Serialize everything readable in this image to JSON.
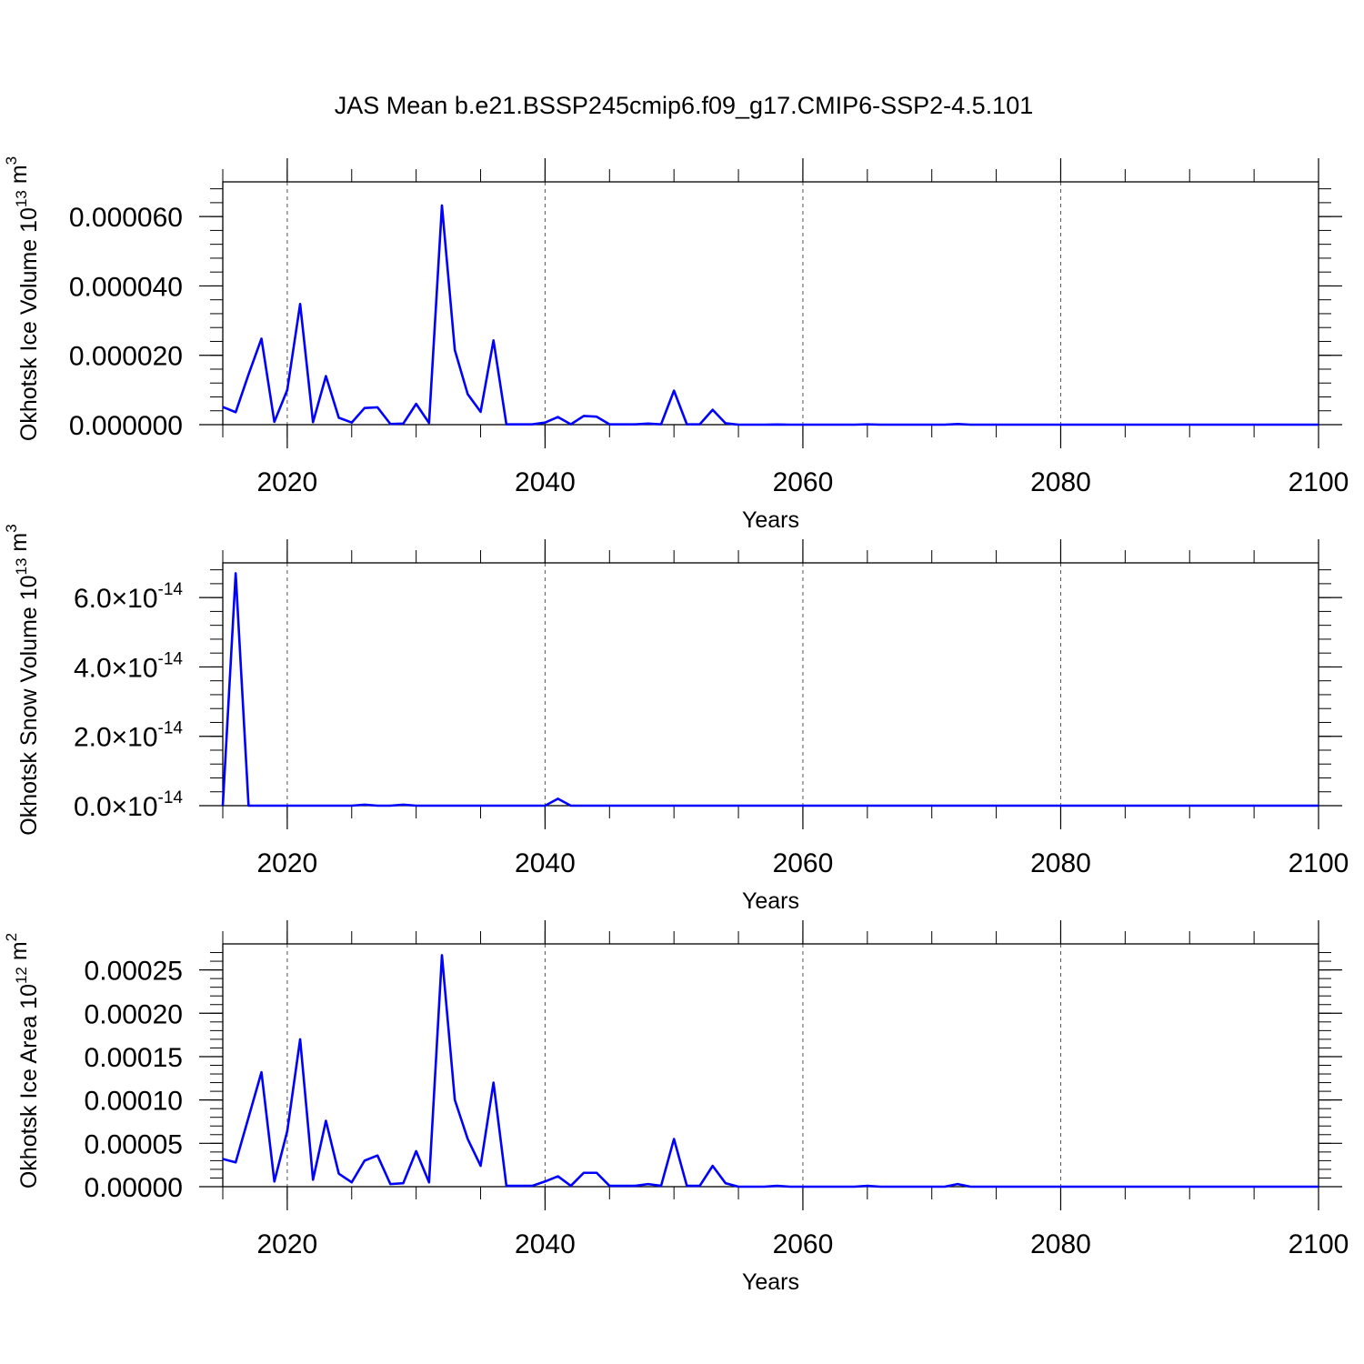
{
  "title": "JAS Mean b.e21.BSSP245cmip6.f09_g17.CMIP6-SSP2-4.5.101",
  "chart_data": [
    {
      "type": "line",
      "ylabel": "Okhotsk Ice Volume 10",
      "ylabel_sup": "13",
      "ylabel_unit": " m",
      "ylabel_unit_sup": "3",
      "xlabel": "Years",
      "xlim": [
        2015,
        2100
      ],
      "ylim": [
        0,
        7e-05
      ],
      "x_ticks": [
        2020,
        2040,
        2060,
        2080,
        2100
      ],
      "x_tick_labels": [
        "2020",
        "2040",
        "2060",
        "2080",
        "2100"
      ],
      "y_ticks": [
        0,
        2e-05,
        4e-05,
        6e-05
      ],
      "y_tick_labels": [
        {
          "base": "0.000000",
          "sup": ""
        },
        {
          "base": "0.000020",
          "sup": ""
        },
        {
          "base": "0.000040",
          "sup": ""
        },
        {
          "base": "0.000060",
          "sup": ""
        }
      ],
      "grid": "vertical dashed",
      "series": [
        {
          "color": "#0000ff",
          "x": [
            2015,
            2016,
            2017,
            2018,
            2019,
            2020,
            2021,
            2022,
            2023,
            2024,
            2025,
            2026,
            2027,
            2028,
            2029,
            2030,
            2031,
            2032,
            2033,
            2034,
            2035,
            2036,
            2037,
            2038,
            2039,
            2040,
            2041,
            2042,
            2043,
            2044,
            2045,
            2046,
            2047,
            2048,
            2049,
            2050,
            2051,
            2052,
            2053,
            2054,
            2055,
            2056,
            2057,
            2058,
            2059,
            2060,
            2061,
            2062,
            2063,
            2064,
            2065,
            2066,
            2067,
            2068,
            2069,
            2070,
            2071,
            2072,
            2073,
            2074,
            2075,
            2076,
            2077,
            2078,
            2079,
            2080,
            2081,
            2082,
            2083,
            2084,
            2085,
            2086,
            2087,
            2088,
            2089,
            2090,
            2091,
            2092,
            2093,
            2094,
            2095,
            2096,
            2097,
            2098,
            2099,
            2100
          ],
          "values": [
            5.1e-06,
            3.6e-06,
            1.45e-05,
            2.48e-05,
            8e-07,
            1e-05,
            3.48e-05,
            7e-07,
            1.4e-05,
            2e-06,
            6e-07,
            4.8e-06,
            5e-06,
            2e-07,
            3e-07,
            6e-06,
            5e-07,
            6.32e-05,
            2.15e-05,
            8.8e-06,
            3.7e-06,
            2.43e-05,
            1e-07,
            1e-07,
            1e-07,
            6e-07,
            2.2e-06,
            1e-07,
            2.5e-06,
            2.3e-06,
            1e-07,
            1e-07,
            1e-07,
            3e-07,
            1e-07,
            9.8e-06,
            1e-07,
            1e-07,
            4.3e-06,
            4e-07,
            0,
            0,
            0,
            5e-08,
            0,
            0,
            0,
            0,
            0,
            0,
            1e-07,
            0,
            0,
            0,
            0,
            0,
            0,
            2e-07,
            0,
            0,
            0,
            0,
            0,
            0,
            0,
            0,
            0,
            0,
            0,
            0,
            0,
            0,
            0,
            0,
            0,
            0,
            0,
            0,
            0,
            0,
            0,
            0,
            0,
            0,
            0,
            0
          ]
        }
      ]
    },
    {
      "type": "line",
      "ylabel": "Okhotsk Snow Volume 10",
      "ylabel_sup": "13",
      "ylabel_unit": " m",
      "ylabel_unit_sup": "3",
      "xlabel": "Years",
      "xlim": [
        2015,
        2100
      ],
      "ylim": [
        0,
        7e-14
      ],
      "x_ticks": [
        2020,
        2040,
        2060,
        2080,
        2100
      ],
      "x_tick_labels": [
        "2020",
        "2040",
        "2060",
        "2080",
        "2100"
      ],
      "y_ticks": [
        0,
        2e-14,
        4e-14,
        6e-14
      ],
      "y_tick_labels": [
        {
          "base": "0.0×10",
          "sup": "-14"
        },
        {
          "base": "2.0×10",
          "sup": "-14"
        },
        {
          "base": "4.0×10",
          "sup": "-14"
        },
        {
          "base": "6.0×10",
          "sup": "-14"
        }
      ],
      "grid": "vertical dashed",
      "series": [
        {
          "color": "#0000ff",
          "x": [
            2015,
            2016,
            2017,
            2018,
            2019,
            2020,
            2021,
            2022,
            2023,
            2024,
            2025,
            2026,
            2027,
            2028,
            2029,
            2030,
            2031,
            2032,
            2033,
            2034,
            2035,
            2036,
            2037,
            2038,
            2039,
            2040,
            2041,
            2042,
            2043,
            2044,
            2045,
            2046,
            2047,
            2048,
            2049,
            2050,
            2051,
            2052,
            2053,
            2054,
            2055,
            2056,
            2057,
            2058,
            2059,
            2060,
            2061,
            2062,
            2063,
            2064,
            2065,
            2066,
            2067,
            2068,
            2069,
            2070,
            2071,
            2072,
            2073,
            2074,
            2075,
            2076,
            2077,
            2078,
            2079,
            2080,
            2081,
            2082,
            2083,
            2084,
            2085,
            2086,
            2087,
            2088,
            2089,
            2090,
            2091,
            2092,
            2093,
            2094,
            2095,
            2096,
            2097,
            2098,
            2099,
            2100
          ],
          "values": [
            0,
            6.7e-14,
            0,
            0,
            0,
            0,
            0,
            0,
            0,
            0,
            0,
            3e-16,
            0,
            0,
            3e-16,
            0,
            0,
            0,
            0,
            0,
            0,
            0,
            0,
            0,
            0,
            0,
            2e-15,
            0,
            0,
            0,
            0,
            0,
            0,
            0,
            0,
            0,
            0,
            0,
            0,
            0,
            0,
            0,
            0,
            0,
            0,
            0,
            0,
            0,
            0,
            0,
            0,
            0,
            0,
            0,
            0,
            0,
            0,
            0,
            0,
            0,
            0,
            0,
            0,
            0,
            0,
            0,
            0,
            0,
            0,
            0,
            0,
            0,
            0,
            0,
            0,
            0,
            0,
            0,
            0,
            0,
            0,
            0,
            0,
            0,
            0,
            0
          ]
        }
      ]
    },
    {
      "type": "line",
      "ylabel": "Okhotsk Ice Area 10",
      "ylabel_sup": "12",
      "ylabel_unit": " m",
      "ylabel_unit_sup": "2",
      "xlabel": "Years",
      "xlim": [
        2015,
        2100
      ],
      "ylim": [
        0,
        0.00028
      ],
      "x_ticks": [
        2020,
        2040,
        2060,
        2080,
        2100
      ],
      "x_tick_labels": [
        "2020",
        "2040",
        "2060",
        "2080",
        "2100"
      ],
      "y_ticks": [
        0,
        5e-05,
        0.0001,
        0.00015,
        0.0002,
        0.00025
      ],
      "y_tick_labels": [
        {
          "base": "0.00000",
          "sup": ""
        },
        {
          "base": "0.00005",
          "sup": ""
        },
        {
          "base": "0.00010",
          "sup": ""
        },
        {
          "base": "0.00015",
          "sup": ""
        },
        {
          "base": "0.00020",
          "sup": ""
        },
        {
          "base": "0.00025",
          "sup": ""
        }
      ],
      "grid": "vertical dashed",
      "series": [
        {
          "color": "#0000ff",
          "x": [
            2015,
            2016,
            2017,
            2018,
            2019,
            2020,
            2021,
            2022,
            2023,
            2024,
            2025,
            2026,
            2027,
            2028,
            2029,
            2030,
            2031,
            2032,
            2033,
            2034,
            2035,
            2036,
            2037,
            2038,
            2039,
            2040,
            2041,
            2042,
            2043,
            2044,
            2045,
            2046,
            2047,
            2048,
            2049,
            2050,
            2051,
            2052,
            2053,
            2054,
            2055,
            2056,
            2057,
            2058,
            2059,
            2060,
            2061,
            2062,
            2063,
            2064,
            2065,
            2066,
            2067,
            2068,
            2069,
            2070,
            2071,
            2072,
            2073,
            2074,
            2075,
            2076,
            2077,
            2078,
            2079,
            2080,
            2081,
            2082,
            2083,
            2084,
            2085,
            2086,
            2087,
            2088,
            2089,
            2090,
            2091,
            2092,
            2093,
            2094,
            2095,
            2096,
            2097,
            2098,
            2099,
            2100
          ],
          "values": [
            3.2e-05,
            2.8e-05,
            8e-05,
            0.000132,
            6e-06,
            6.4e-05,
            0.00017,
            8e-06,
            7.6e-05,
            1.5e-05,
            5e-06,
            3e-05,
            3.6e-05,
            3e-06,
            4e-06,
            4.1e-05,
            5e-06,
            0.000267,
            0.0001,
            5.5e-05,
            2.4e-05,
            0.00012,
            1e-06,
            1e-06,
            1e-06,
            6e-06,
            1.2e-05,
            1e-06,
            1.6e-05,
            1.6e-05,
            1e-06,
            1e-06,
            1e-06,
            3e-06,
            1e-06,
            5.5e-05,
            1e-06,
            1e-06,
            2.4e-05,
            4e-06,
            0,
            0,
            0,
            1e-06,
            0,
            0,
            0,
            0,
            0,
            0,
            1e-06,
            0,
            0,
            0,
            0,
            0,
            0,
            3e-06,
            0,
            0,
            0,
            0,
            0,
            0,
            0,
            0,
            0,
            0,
            0,
            0,
            0,
            0,
            0,
            0,
            0,
            0,
            0,
            0,
            0,
            0,
            0,
            0,
            0,
            0,
            0,
            0
          ]
        }
      ]
    }
  ]
}
